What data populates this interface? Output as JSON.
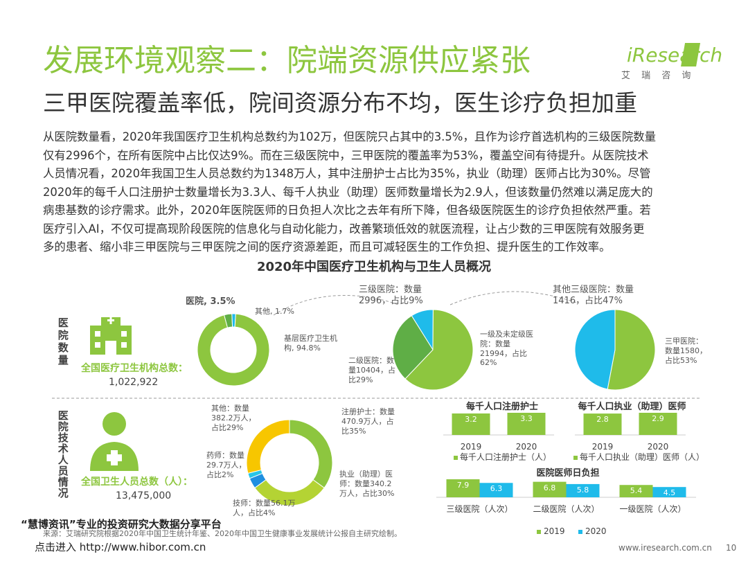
{
  "header": {
    "title": "发展环境观察二：院端资源供应紧张",
    "subtitle": "三甲医院覆盖率低，院间资源分布不均，医生诊疗负担加重",
    "logo": "iResearch",
    "logo_cn": "艾 瑞 咨 询"
  },
  "body_text": [
    "从医院数量看，2020年我国医疗卫生机构总数约为102万，但医院只占其中的3.5%，且作为诊疗首选机构的三级医院数量",
    "仅有2996个，在所有医院中占比仅达9%。而在三级医院中，三甲医院的覆盖率为53%，覆盖空间有待提升。从医院技术",
    "人员情况看，2020年我国卫生人员总数约为1348万人，其中注册护士占比为35%，执业（助理）医师占比为30%。尽管",
    "2020年的每千人口注册护士数量增长为3.3人、每千人执业（助理）医师数量增长为2.9人，但该数量仍然难以满足庞大的",
    "病患基数的诊疗需求。此外，2020年医院医师的日负担人次比之去年有所下降，但各级医院医生的诊疗负担依然严重。若",
    "医疗引入AI，不仅可提高现阶段医院的信息化与自动化能力，改善繁琐低效的就医流程，让占少数的三甲医院有效服务更",
    "多的患者、缩小非三甲医院与三甲医院之间的医疗资源差距，而且可减轻医生的工作负担、提升医生的工作效率。"
  ],
  "section_title": "2020年中国医疗卫生机构与卫生人员概况",
  "row_labels": [
    "医院数量",
    "医院技术人员情况"
  ],
  "totals": [
    {
      "label": "全国医疗卫生机构总数：",
      "value": "1,022,922"
    },
    {
      "label": "全国卫生人员总数（人）：",
      "value": "13,475,000"
    }
  ],
  "chart_data": [
    {
      "type": "donut",
      "values": [
        3.5,
        1.7,
        94.8
      ],
      "value_labels": [
        "医院, 3.5%",
        "其他, 1.7%",
        "基层医疗卫生机构, 94.8%"
      ],
      "colors": [
        "#5fae46",
        "#1fbbea",
        "#8dc63f"
      ]
    },
    {
      "type": "pie",
      "values": [
        9,
        62,
        29
      ],
      "value_labels": [
        "三级医院：数量2996，占比9%",
        "一级及未定级医院：数量21994，占比62%",
        "二级医院：数量10404，占比29%"
      ],
      "colors": [
        "#1fbbea",
        "#8dc63f",
        "#5fae46"
      ]
    },
    {
      "type": "pie",
      "values": [
        53,
        47
      ],
      "value_labels": [
        "三甲医院：数量1580，占比53%",
        "其他三级医院：数量1416，占比47%"
      ],
      "colors": [
        "#8dc63f",
        "#1fbbea"
      ]
    },
    {
      "type": "donut",
      "values": [
        35,
        30,
        4,
        2,
        29
      ],
      "value_labels": [
        "注册护士：数量470.9万人，占比35%",
        "执业（助理）医师：数量340.2万人，占比30%",
        "技师：数量56.1万人，占比4%",
        "药师：数量29.7万人，占比2%",
        "其他：数量382.2万人，占比29%"
      ],
      "colors": [
        "#8dc63f",
        "#b4d334",
        "#1f8fe0",
        "#29c5e6",
        "#f7c600"
      ]
    },
    {
      "type": "bar",
      "title": "每千人口注册护士",
      "categories": [
        "2019",
        "2020"
      ],
      "series": [
        {
          "name": "每千人口注册护士（人）",
          "color": "#8dc63f",
          "values": [
            3.2,
            3.3
          ]
        }
      ]
    },
    {
      "type": "bar",
      "title": "每千人口执业（助理）医师",
      "categories": [
        "2019",
        "2020"
      ],
      "series": [
        {
          "name": "每千人口执业（助理）医师（人）",
          "color": "#8dc63f",
          "values": [
            2.8,
            2.9
          ]
        }
      ]
    },
    {
      "type": "bar",
      "title": "医院医师日负担",
      "categories": [
        "三级医院（人次）",
        "二级医院（人次）",
        "一级医院（人次）"
      ],
      "series": [
        {
          "name": "2019",
          "color": "#8dc63f",
          "values": [
            7.9,
            6.8,
            5.4
          ]
        },
        {
          "name": "2020",
          "color": "#1fbbea",
          "values": [
            6.3,
            5.8,
            4.5
          ]
        }
      ]
    }
  ],
  "source": "来源：艾瑞研究院根据2020年中国卫生统计年鉴、2020年中国卫生健康事业发展统计公报自主研究绘制。",
  "website": "www.iresearch.com.cn",
  "page_number": "10",
  "watermark": [
    "“慧博资讯”专业的投资研究大数据分享平台",
    "点击进入 http://www.hibor.com.cn"
  ]
}
